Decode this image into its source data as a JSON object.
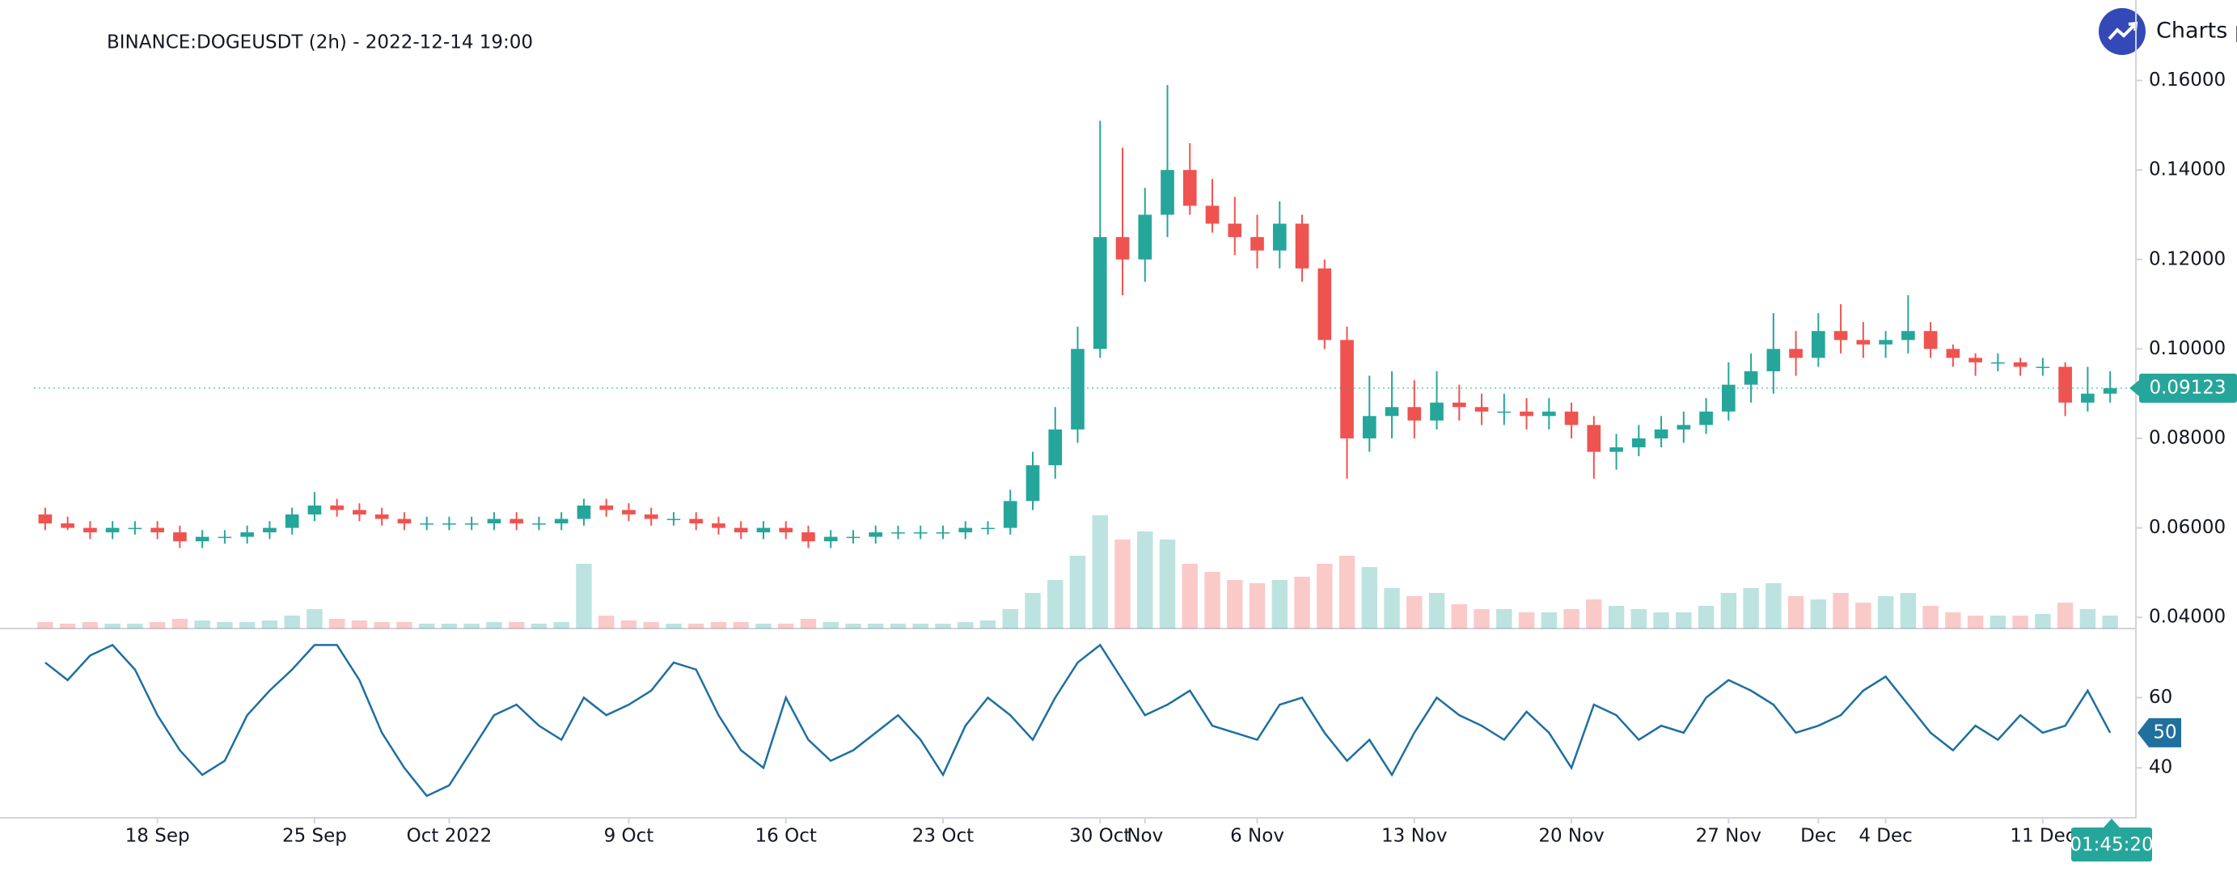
{
  "brand": "Charts p",
  "chart_data": [
    {
      "type": "candlestick",
      "title": "BINANCE:DOGEUSDT (2h) - 2022-12-14 19:00",
      "countdown": "01:45:20",
      "categories": [
        null,
        null,
        null,
        null,
        null,
        "18 Sep",
        null,
        null,
        null,
        null,
        null,
        null,
        "25 Sep",
        null,
        null,
        null,
        null,
        null,
        "Oct 2022",
        null,
        null,
        null,
        null,
        null,
        null,
        null,
        "9 Oct",
        null,
        null,
        null,
        null,
        null,
        null,
        "16 Oct",
        null,
        null,
        null,
        null,
        null,
        null,
        "23 Oct",
        null,
        null,
        null,
        null,
        null,
        null,
        "30 Oct",
        null,
        "Nov",
        null,
        null,
        null,
        null,
        "6 Nov",
        null,
        null,
        null,
        null,
        null,
        null,
        "13 Nov",
        null,
        null,
        null,
        null,
        null,
        null,
        "20 Nov",
        null,
        null,
        null,
        null,
        null,
        null,
        "27 Nov",
        null,
        null,
        null,
        "Dec",
        null,
        null,
        "4 Dec",
        null,
        null,
        null,
        null,
        null,
        null,
        "11 Dec",
        null,
        null,
        null
      ],
      "open": [
        0.063,
        0.061,
        0.06,
        0.059,
        0.06,
        0.06,
        0.059,
        0.057,
        0.058,
        0.058,
        0.059,
        0.06,
        0.063,
        0.065,
        0.064,
        0.063,
        0.062,
        0.061,
        0.061,
        0.061,
        0.061,
        0.062,
        0.061,
        0.061,
        0.062,
        0.065,
        0.064,
        0.063,
        0.062,
        0.062,
        0.061,
        0.06,
        0.059,
        0.06,
        0.059,
        0.057,
        0.058,
        0.058,
        0.059,
        0.059,
        0.059,
        0.059,
        0.06,
        0.06,
        0.066,
        0.074,
        0.082,
        0.1,
        0.125,
        0.12,
        0.13,
        0.14,
        0.132,
        0.128,
        0.125,
        0.122,
        0.128,
        0.118,
        0.102,
        0.08,
        0.085,
        0.087,
        0.084,
        0.088,
        0.087,
        0.086,
        0.086,
        0.085,
        0.086,
        0.083,
        0.077,
        0.078,
        0.08,
        0.082,
        0.083,
        0.086,
        0.092,
        0.095,
        0.1,
        0.098,
        0.104,
        0.102,
        0.101,
        0.102,
        0.104,
        0.1,
        0.098,
        0.097,
        0.097,
        0.096,
        0.096,
        0.088,
        0.09
      ],
      "high": [
        0.0645,
        0.0625,
        0.0615,
        0.0615,
        0.0615,
        0.0615,
        0.0605,
        0.0595,
        0.0595,
        0.0605,
        0.0615,
        0.0645,
        0.068,
        0.0665,
        0.0655,
        0.0645,
        0.0635,
        0.0625,
        0.0625,
        0.0625,
        0.0635,
        0.0635,
        0.0625,
        0.0635,
        0.0665,
        0.0665,
        0.0655,
        0.0645,
        0.0635,
        0.0635,
        0.0625,
        0.0615,
        0.0615,
        0.0615,
        0.0605,
        0.0595,
        0.0595,
        0.0605,
        0.0605,
        0.0605,
        0.0605,
        0.0615,
        0.0615,
        0.0685,
        0.077,
        0.087,
        0.105,
        0.151,
        0.145,
        0.136,
        0.159,
        0.146,
        0.138,
        0.134,
        0.13,
        0.133,
        0.13,
        0.12,
        0.105,
        0.094,
        0.095,
        0.093,
        0.095,
        0.092,
        0.09,
        0.09,
        0.089,
        0.089,
        0.088,
        0.085,
        0.081,
        0.083,
        0.085,
        0.086,
        0.089,
        0.097,
        0.099,
        0.108,
        0.104,
        0.108,
        0.11,
        0.106,
        0.104,
        0.112,
        0.106,
        0.101,
        0.099,
        0.099,
        0.098,
        0.098,
        0.097,
        0.096,
        0.095
      ],
      "low": [
        0.0595,
        0.0595,
        0.0575,
        0.0575,
        0.0585,
        0.0575,
        0.0555,
        0.0555,
        0.0565,
        0.0565,
        0.0575,
        0.0585,
        0.0615,
        0.0625,
        0.0615,
        0.0605,
        0.0595,
        0.0595,
        0.0595,
        0.0595,
        0.0595,
        0.0595,
        0.0595,
        0.0595,
        0.0605,
        0.0625,
        0.0615,
        0.0605,
        0.0605,
        0.0595,
        0.0585,
        0.0575,
        0.0575,
        0.0575,
        0.0555,
        0.0555,
        0.0565,
        0.0565,
        0.0575,
        0.0575,
        0.0575,
        0.0575,
        0.0585,
        0.0585,
        0.064,
        0.071,
        0.079,
        0.098,
        0.112,
        0.115,
        0.125,
        0.13,
        0.126,
        0.121,
        0.118,
        0.118,
        0.115,
        0.1,
        0.071,
        0.077,
        0.08,
        0.08,
        0.082,
        0.084,
        0.083,
        0.083,
        0.082,
        0.082,
        0.08,
        0.071,
        0.073,
        0.076,
        0.078,
        0.079,
        0.081,
        0.084,
        0.088,
        0.09,
        0.094,
        0.096,
        0.099,
        0.098,
        0.098,
        0.099,
        0.098,
        0.096,
        0.094,
        0.095,
        0.094,
        0.094,
        0.085,
        0.086,
        0.088
      ],
      "close": [
        0.061,
        0.06,
        0.059,
        0.06,
        0.06,
        0.059,
        0.057,
        0.058,
        0.058,
        0.059,
        0.06,
        0.063,
        0.065,
        0.064,
        0.063,
        0.062,
        0.061,
        0.061,
        0.061,
        0.061,
        0.062,
        0.061,
        0.061,
        0.062,
        0.065,
        0.064,
        0.063,
        0.062,
        0.062,
        0.061,
        0.06,
        0.059,
        0.06,
        0.059,
        0.057,
        0.058,
        0.058,
        0.059,
        0.059,
        0.059,
        0.059,
        0.06,
        0.06,
        0.066,
        0.074,
        0.082,
        0.1,
        0.125,
        0.12,
        0.13,
        0.14,
        0.132,
        0.128,
        0.125,
        0.122,
        0.128,
        0.118,
        0.102,
        0.08,
        0.085,
        0.087,
        0.084,
        0.088,
        0.087,
        0.086,
        0.086,
        0.085,
        0.086,
        0.083,
        0.077,
        0.078,
        0.08,
        0.082,
        0.083,
        0.086,
        0.092,
        0.095,
        0.1,
        0.098,
        0.104,
        0.102,
        0.101,
        0.102,
        0.104,
        0.1,
        0.098,
        0.097,
        0.097,
        0.096,
        0.096,
        0.088,
        0.09,
        0.09123
      ],
      "volume": [
        4,
        3,
        4,
        3,
        3,
        4,
        6,
        5,
        4,
        4,
        5,
        8,
        12,
        6,
        5,
        4,
        4,
        3,
        3,
        3,
        4,
        4,
        3,
        4,
        40,
        8,
        5,
        4,
        3,
        3,
        4,
        4,
        3,
        3,
        6,
        4,
        3,
        3,
        3,
        3,
        3,
        4,
        5,
        12,
        22,
        30,
        45,
        70,
        55,
        60,
        55,
        40,
        35,
        30,
        28,
        30,
        32,
        40,
        45,
        38,
        25,
        20,
        22,
        15,
        12,
        12,
        10,
        10,
        12,
        18,
        14,
        12,
        10,
        10,
        14,
        22,
        25,
        28,
        20,
        18,
        22,
        16,
        20,
        22,
        14,
        10,
        8,
        8,
        8,
        9,
        16,
        12,
        8
      ],
      "up_color": "#26a69a",
      "down_color": "#ef5350",
      "ylim": [
        0.0375,
        0.178
      ],
      "yticks": [
        {
          "value": 0.04,
          "label": "0.04000"
        },
        {
          "value": 0.06,
          "label": "0.06000"
        },
        {
          "value": 0.08,
          "label": "0.08000"
        },
        {
          "value": 0.1,
          "label": "0.10000"
        },
        {
          "value": 0.12,
          "label": "0.12000"
        },
        {
          "value": 0.14,
          "label": "0.14000"
        },
        {
          "value": 0.16,
          "label": "0.16000"
        }
      ]
    },
    {
      "type": "line",
      "color": "#1f6f9f",
      "values": [
        70,
        65,
        72,
        75,
        68,
        55,
        45,
        38,
        42,
        55,
        62,
        68,
        75,
        75,
        65,
        50,
        40,
        32,
        35,
        45,
        55,
        58,
        52,
        48,
        60,
        55,
        58,
        62,
        70,
        68,
        55,
        45,
        40,
        60,
        48,
        42,
        45,
        50,
        55,
        48,
        38,
        52,
        60,
        55,
        48,
        60,
        70,
        75,
        65,
        55,
        58,
        62,
        52,
        50,
        48,
        58,
        60,
        50,
        42,
        48,
        38,
        50,
        60,
        55,
        52,
        48,
        56,
        50,
        40,
        58,
        55,
        48,
        52,
        50,
        60,
        65,
        62,
        58,
        50,
        52,
        55,
        62,
        66,
        58,
        50,
        45,
        52,
        48,
        55,
        50,
        52,
        62,
        50
      ],
      "ylim": [
        26,
        79
      ],
      "yticks": [
        40,
        60
      ]
    }
  ]
}
